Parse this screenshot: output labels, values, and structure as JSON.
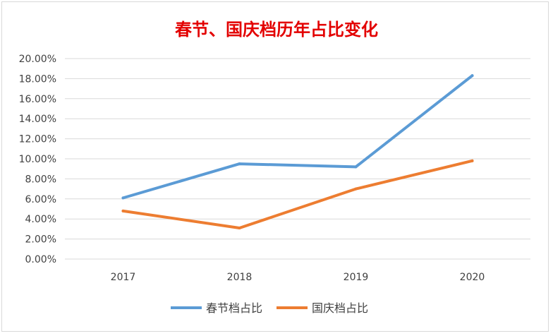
{
  "chart_data": {
    "type": "line",
    "title": "春节、国庆档历年占比变化",
    "categories": [
      "2017",
      "2018",
      "2019",
      "2020"
    ],
    "series": [
      {
        "name": "春节档占比",
        "values": [
          0.061,
          0.095,
          0.092,
          0.183
        ],
        "color": "#5b9bd5"
      },
      {
        "name": "国庆档占比",
        "values": [
          0.048,
          0.031,
          0.07,
          0.098
        ],
        "color": "#ed7d31"
      }
    ],
    "ylim": [
      0,
      0.2
    ],
    "yticks": [
      "0.00%",
      "2.00%",
      "4.00%",
      "6.00%",
      "8.00%",
      "10.00%",
      "12.00%",
      "14.00%",
      "16.00%",
      "18.00%",
      "20.00%"
    ],
    "grid": true,
    "legend": "bottom",
    "xlabel": "",
    "ylabel": ""
  }
}
